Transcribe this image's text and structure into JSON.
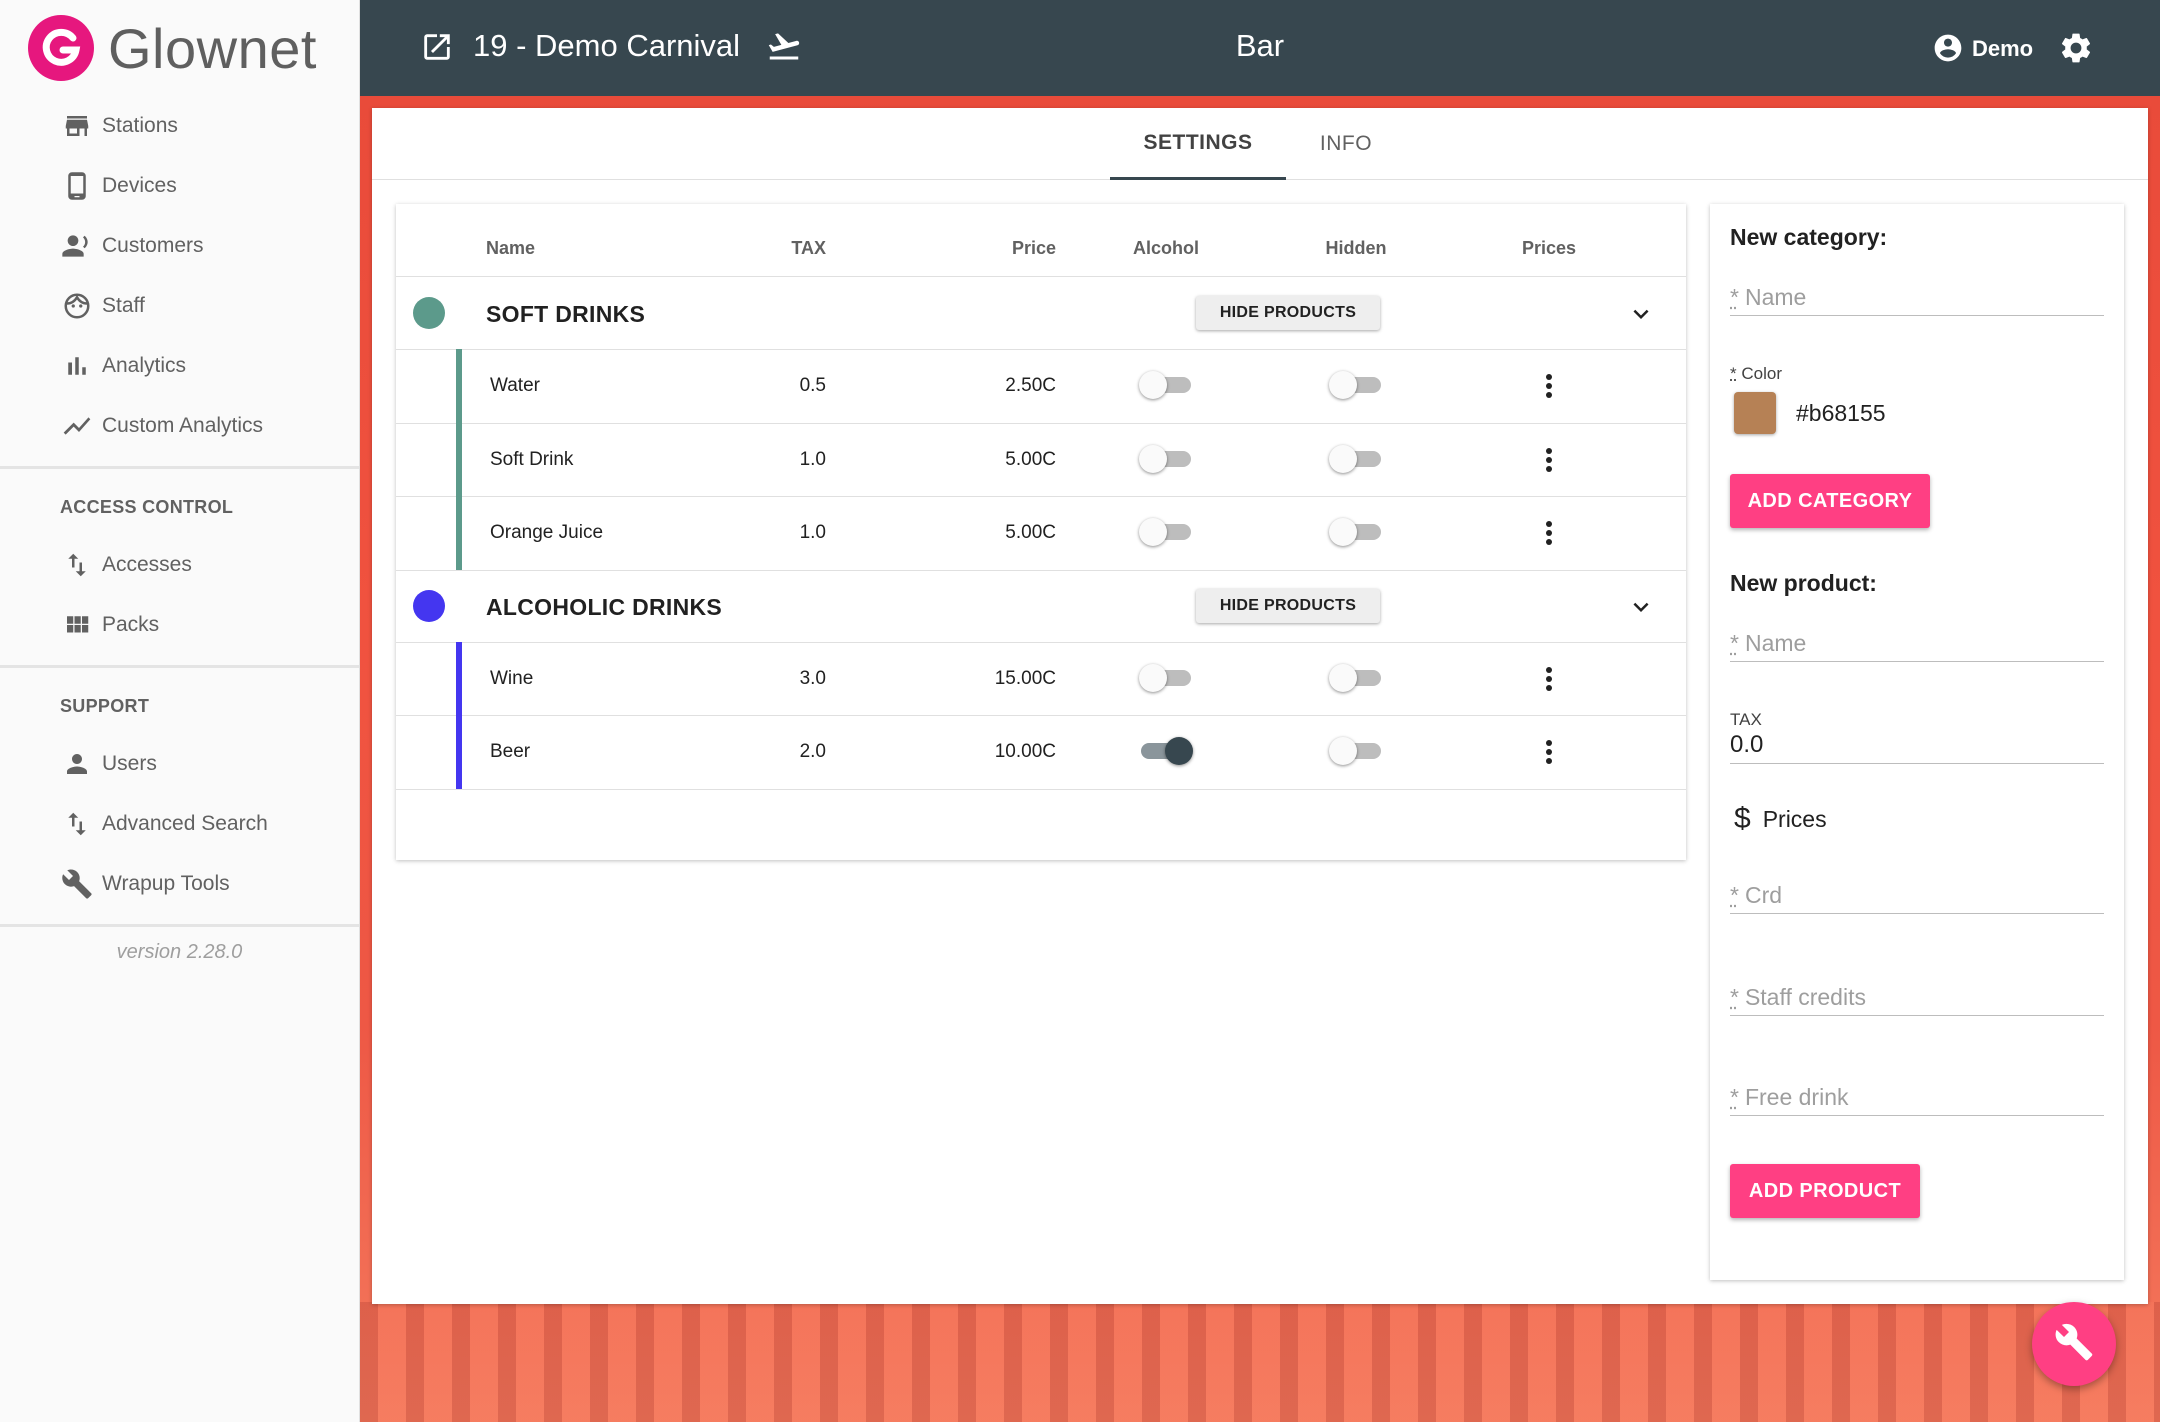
{
  "brand": {
    "name": "Glownet",
    "logo_letter": "G",
    "color": "#e6177e"
  },
  "sidebar": {
    "main_items": [
      {
        "label": "Stations",
        "icon": "store-icon"
      },
      {
        "label": "Devices",
        "icon": "phone-icon"
      },
      {
        "label": "Customers",
        "icon": "customers-icon"
      },
      {
        "label": "Staff",
        "icon": "face-icon"
      },
      {
        "label": "Analytics",
        "icon": "bar-chart-icon"
      },
      {
        "label": "Custom Analytics",
        "icon": "line-chart-icon"
      }
    ],
    "access_control": {
      "title": "ACCESS CONTROL",
      "items": [
        {
          "label": "Accesses",
          "icon": "swap-vertical-icon"
        },
        {
          "label": "Packs",
          "icon": "grid-icon"
        }
      ]
    },
    "support": {
      "title": "SUPPORT",
      "items": [
        {
          "label": "Users",
          "icon": "person-icon"
        },
        {
          "label": "Advanced Search",
          "icon": "swap-vertical-icon"
        },
        {
          "label": "Wrapup Tools",
          "icon": "wrench-icon"
        }
      ]
    },
    "version": "version 2.28.0"
  },
  "header": {
    "event_title": "19 - Demo Carnival",
    "station_title": "Bar",
    "user_name": "Demo",
    "color": "#37474f"
  },
  "tabs": [
    {
      "label": "SETTINGS",
      "active": true
    },
    {
      "label": "INFO",
      "active": false
    }
  ],
  "table": {
    "columns": {
      "name": "Name",
      "tax": "TAX",
      "price": "Price",
      "alcohol": "Alcohol",
      "hidden": "Hidden",
      "prices": "Prices"
    },
    "hide_products_label": "HIDE PRODUCTS",
    "categories": [
      {
        "name": "SOFT DRINKS",
        "color": "#5c9a8b",
        "products": [
          {
            "name": "Water",
            "tax": "0.5",
            "price": "2.50C",
            "alcohol": false,
            "hidden": false
          },
          {
            "name": "Soft Drink",
            "tax": "1.0",
            "price": "5.00C",
            "alcohol": false,
            "hidden": false
          },
          {
            "name": "Orange Juice",
            "tax": "1.0",
            "price": "5.00C",
            "alcohol": false,
            "hidden": false
          }
        ]
      },
      {
        "name": "ALCOHOLIC DRINKS",
        "color": "#4436f0",
        "products": [
          {
            "name": "Wine",
            "tax": "3.0",
            "price": "15.00C",
            "alcohol": false,
            "hidden": false
          },
          {
            "name": "Beer",
            "tax": "2.0",
            "price": "10.00C",
            "alcohol": true,
            "hidden": false
          }
        ]
      }
    ]
  },
  "form": {
    "new_category": {
      "title": "New category:",
      "name_placeholder": "Name",
      "required_mark": "*",
      "color_label": "Color",
      "color_value": "#b68155",
      "add_button": "ADD CATEGORY"
    },
    "new_product": {
      "title": "New product:",
      "name_placeholder": "Name",
      "tax_label": "TAX",
      "tax_value": "0.0",
      "prices_title": "Prices",
      "crd_placeholder": "Crd",
      "staff_credits_placeholder": "Staff credits",
      "free_drink_placeholder": "Free drink",
      "add_button": "ADD PRODUCT"
    },
    "accent": "#ff3f83"
  }
}
